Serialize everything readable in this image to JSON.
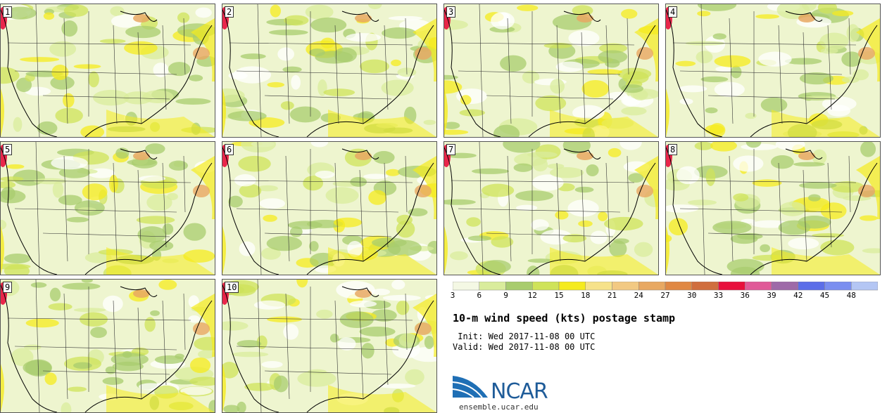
{
  "panels": [
    {
      "id": "1"
    },
    {
      "id": "2"
    },
    {
      "id": "3"
    },
    {
      "id": "4"
    },
    {
      "id": "5"
    },
    {
      "id": "6"
    },
    {
      "id": "7"
    },
    {
      "id": "8"
    },
    {
      "id": "9"
    },
    {
      "id": "10"
    }
  ],
  "legend": {
    "colors": [
      "#f4f8e4",
      "#d9ec9c",
      "#a8cc6e",
      "#cfe35a",
      "#f5eb1e",
      "#f6e28a",
      "#f2c983",
      "#e8a862",
      "#e08844",
      "#d06e3e",
      "#e8103c",
      "#e05a98",
      "#9e6aa8",
      "#5c6ee8",
      "#7a8ef0",
      "#b4c6f4"
    ],
    "labels": [
      "3",
      "6",
      "9",
      "12",
      "15",
      "18",
      "21",
      "24",
      "27",
      "30",
      "33",
      "36",
      "39",
      "42",
      "45",
      "48"
    ]
  },
  "title": "10-m wind speed (kts) postage stamp",
  "init_label": " Init: Wed 2017-11-08 00 UTC",
  "valid_label": "Valid: Wed 2017-11-08 00 UTC",
  "logo_text": "NCAR",
  "site": "ensemble.ucar.edu"
}
